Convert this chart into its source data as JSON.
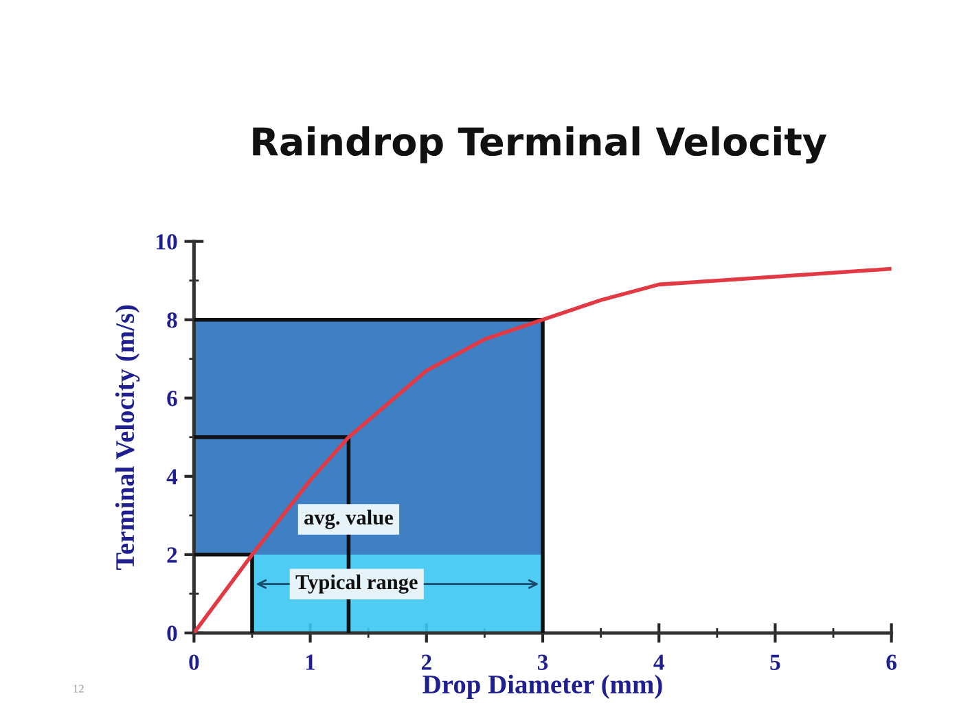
{
  "chart_data": {
    "type": "line",
    "title": "Raindrop Terminal Velocity",
    "xlabel": "Drop Diameter (mm)",
    "ylabel": "Terminal Velocity (m/s)",
    "x": [
      0,
      0.5,
      1,
      1.33,
      2,
      2.5,
      3,
      3.5,
      4,
      4.5,
      5,
      5.5,
      6
    ],
    "series": [
      {
        "color": "#e23a44",
        "values": [
          0,
          2,
          3.9,
          5,
          6.7,
          7.5,
          8,
          8.5,
          8.9,
          9.0,
          9.1,
          9.2,
          9.3
        ]
      }
    ],
    "xlim": [
      0,
      6
    ],
    "ylim": [
      0,
      10
    ],
    "xticks": [
      0,
      1,
      2,
      3,
      4,
      5,
      6
    ],
    "yticks": [
      0,
      2,
      4,
      6,
      8,
      10
    ],
    "bands": [
      {
        "axis": "y",
        "from": 2,
        "to": 8,
        "color": "#3f7fc4"
      },
      {
        "axis": "x",
        "from": 0.5,
        "to": 3,
        "label": "Typical range",
        "color": "#3cc6f2"
      }
    ],
    "ref_lines": [
      {
        "axis": "x",
        "value": 0.5
      },
      {
        "axis": "x",
        "value": 1.33,
        "label": "avg. value"
      },
      {
        "axis": "x",
        "value": 3
      },
      {
        "axis": "y",
        "value": 2
      },
      {
        "axis": "y",
        "value": 5
      },
      {
        "axis": "y",
        "value": 8
      }
    ],
    "annotations": [
      "12"
    ],
    "grid": false,
    "legend": false,
    "marker": "none",
    "line_style": "solid"
  }
}
